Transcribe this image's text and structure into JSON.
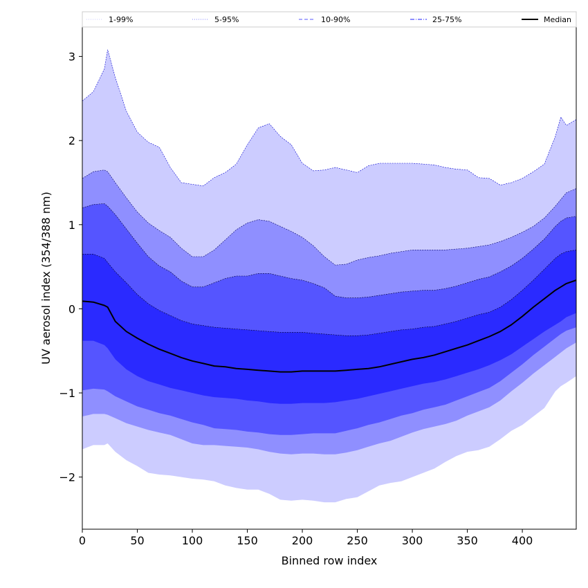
{
  "chart_data": {
    "type": "area",
    "xlabel": "Binned row index",
    "ylabel": "UV aerosol index (354/388 nm)",
    "xlim": [
      0,
      449
    ],
    "ylim": [
      -2.62,
      3.35
    ],
    "xticks": [
      0,
      50,
      100,
      150,
      200,
      250,
      300,
      350,
      400
    ],
    "yticks": [
      -2,
      -1,
      0,
      1,
      2,
      3
    ],
    "grid": false,
    "legend_placement": "top, spanning width",
    "x": [
      0,
      10,
      20,
      23,
      30,
      40,
      50,
      60,
      70,
      80,
      90,
      100,
      110,
      120,
      130,
      140,
      150,
      160,
      170,
      180,
      190,
      200,
      210,
      220,
      230,
      240,
      250,
      260,
      270,
      280,
      290,
      300,
      310,
      320,
      330,
      340,
      350,
      360,
      370,
      380,
      390,
      400,
      410,
      420,
      430,
      435,
      440,
      449
    ],
    "bands": [
      {
        "name": "1-99%",
        "fill": "#ccccff",
        "edge": "#0000cc",
        "upper": [
          2.47,
          2.58,
          2.85,
          3.08,
          2.75,
          2.35,
          2.1,
          1.98,
          1.92,
          1.68,
          1.5,
          1.48,
          1.46,
          1.56,
          1.62,
          1.72,
          1.95,
          2.15,
          2.2,
          2.05,
          1.95,
          1.73,
          1.64,
          1.65,
          1.68,
          1.65,
          1.62,
          1.7,
          1.73,
          1.73,
          1.73,
          1.73,
          1.72,
          1.71,
          1.68,
          1.66,
          1.65,
          1.56,
          1.55,
          1.47,
          1.5,
          1.55,
          1.63,
          1.72,
          2.05,
          2.28,
          2.18,
          2.25
        ],
        "lower": [
          -1.67,
          -1.62,
          -1.62,
          -1.6,
          -1.7,
          -1.8,
          -1.87,
          -1.95,
          -1.97,
          -1.98,
          -2.0,
          -2.02,
          -2.03,
          -2.05,
          -2.1,
          -2.13,
          -2.15,
          -2.15,
          -2.2,
          -2.27,
          -2.28,
          -2.27,
          -2.28,
          -2.3,
          -2.3,
          -2.26,
          -2.24,
          -2.17,
          -2.1,
          -2.07,
          -2.05,
          -2.0,
          -1.95,
          -1.9,
          -1.82,
          -1.75,
          -1.7,
          -1.68,
          -1.64,
          -1.55,
          -1.45,
          -1.38,
          -1.28,
          -1.18,
          -0.98,
          -0.92,
          -0.88,
          -0.8
        ]
      },
      {
        "name": "5-95%",
        "fill": "#8f8fff",
        "edge": "#000066",
        "upper": [
          1.55,
          1.63,
          1.65,
          1.63,
          1.5,
          1.32,
          1.15,
          1.02,
          0.93,
          0.85,
          0.72,
          0.62,
          0.62,
          0.7,
          0.82,
          0.94,
          1.02,
          1.06,
          1.04,
          0.98,
          0.92,
          0.85,
          0.75,
          0.62,
          0.52,
          0.53,
          0.58,
          0.61,
          0.63,
          0.66,
          0.68,
          0.7,
          0.7,
          0.7,
          0.7,
          0.71,
          0.72,
          0.74,
          0.76,
          0.8,
          0.85,
          0.91,
          0.98,
          1.08,
          1.22,
          1.3,
          1.38,
          1.43
        ],
        "lower": [
          -1.28,
          -1.25,
          -1.25,
          -1.26,
          -1.3,
          -1.36,
          -1.4,
          -1.44,
          -1.47,
          -1.5,
          -1.55,
          -1.6,
          -1.62,
          -1.62,
          -1.63,
          -1.64,
          -1.65,
          -1.67,
          -1.7,
          -1.72,
          -1.73,
          -1.72,
          -1.72,
          -1.73,
          -1.73,
          -1.71,
          -1.68,
          -1.64,
          -1.6,
          -1.57,
          -1.52,
          -1.47,
          -1.43,
          -1.4,
          -1.37,
          -1.33,
          -1.27,
          -1.22,
          -1.17,
          -1.09,
          -0.98,
          -0.88,
          -0.77,
          -0.67,
          -0.57,
          -0.52,
          -0.47,
          -0.4
        ]
      },
      {
        "name": "10-90%",
        "fill": "#5555ff",
        "edge": "#000033",
        "upper": [
          1.2,
          1.24,
          1.25,
          1.22,
          1.12,
          0.95,
          0.78,
          0.62,
          0.51,
          0.44,
          0.33,
          0.26,
          0.26,
          0.31,
          0.36,
          0.39,
          0.39,
          0.42,
          0.42,
          0.39,
          0.36,
          0.34,
          0.3,
          0.25,
          0.15,
          0.13,
          0.13,
          0.14,
          0.16,
          0.18,
          0.2,
          0.21,
          0.22,
          0.22,
          0.24,
          0.27,
          0.31,
          0.35,
          0.38,
          0.44,
          0.51,
          0.6,
          0.71,
          0.83,
          0.98,
          1.04,
          1.08,
          1.1
        ],
        "lower": [
          -0.97,
          -0.95,
          -0.96,
          -0.98,
          -1.04,
          -1.1,
          -1.16,
          -1.2,
          -1.24,
          -1.27,
          -1.31,
          -1.35,
          -1.38,
          -1.42,
          -1.43,
          -1.44,
          -1.46,
          -1.47,
          -1.49,
          -1.5,
          -1.5,
          -1.49,
          -1.48,
          -1.48,
          -1.48,
          -1.45,
          -1.42,
          -1.38,
          -1.35,
          -1.31,
          -1.27,
          -1.24,
          -1.2,
          -1.17,
          -1.14,
          -1.09,
          -1.04,
          -0.99,
          -0.94,
          -0.86,
          -0.76,
          -0.66,
          -0.55,
          -0.45,
          -0.35,
          -0.3,
          -0.26,
          -0.22
        ]
      },
      {
        "name": "25-75%",
        "fill": "#2a2aff",
        "edge": "#000022",
        "upper": [
          0.65,
          0.65,
          0.6,
          0.55,
          0.44,
          0.31,
          0.17,
          0.06,
          -0.02,
          -0.08,
          -0.14,
          -0.18,
          -0.2,
          -0.22,
          -0.23,
          -0.24,
          -0.25,
          -0.26,
          -0.27,
          -0.28,
          -0.28,
          -0.28,
          -0.29,
          -0.3,
          -0.31,
          -0.32,
          -0.32,
          -0.31,
          -0.29,
          -0.27,
          -0.25,
          -0.24,
          -0.22,
          -0.21,
          -0.18,
          -0.15,
          -0.11,
          -0.07,
          -0.04,
          0.02,
          0.11,
          0.22,
          0.34,
          0.47,
          0.6,
          0.65,
          0.68,
          0.7
        ],
        "lower": [
          -0.38,
          -0.38,
          -0.43,
          -0.47,
          -0.6,
          -0.72,
          -0.8,
          -0.86,
          -0.9,
          -0.94,
          -0.97,
          -1.0,
          -1.03,
          -1.05,
          -1.06,
          -1.07,
          -1.09,
          -1.1,
          -1.12,
          -1.13,
          -1.13,
          -1.12,
          -1.12,
          -1.12,
          -1.11,
          -1.09,
          -1.07,
          -1.04,
          -1.01,
          -0.98,
          -0.95,
          -0.92,
          -0.89,
          -0.87,
          -0.84,
          -0.8,
          -0.76,
          -0.72,
          -0.67,
          -0.61,
          -0.54,
          -0.45,
          -0.36,
          -0.27,
          -0.19,
          -0.15,
          -0.1,
          -0.05
        ]
      }
    ],
    "median": {
      "name": "Median",
      "color": "#000000",
      "values": [
        0.09,
        0.08,
        0.04,
        0.02,
        -0.15,
        -0.27,
        -0.35,
        -0.42,
        -0.48,
        -0.53,
        -0.58,
        -0.62,
        -0.65,
        -0.68,
        -0.69,
        -0.71,
        -0.72,
        -0.73,
        -0.74,
        -0.75,
        -0.75,
        -0.74,
        -0.74,
        -0.74,
        -0.74,
        -0.73,
        -0.72,
        -0.71,
        -0.69,
        -0.66,
        -0.63,
        -0.6,
        -0.58,
        -0.55,
        -0.51,
        -0.47,
        -0.43,
        -0.38,
        -0.33,
        -0.27,
        -0.19,
        -0.09,
        0.02,
        0.12,
        0.22,
        0.26,
        0.3,
        0.34
      ]
    },
    "legend": [
      {
        "label": "1-99%",
        "color": "#d5d5ff",
        "style": "dotted"
      },
      {
        "label": "5-95%",
        "color": "#9b9bff",
        "style": "dotted"
      },
      {
        "label": "10-90%",
        "color": "#7777ff",
        "style": "dashed"
      },
      {
        "label": "25-75%",
        "color": "#4a4aff",
        "style": "dashdot"
      },
      {
        "label": "Median",
        "color": "#000000",
        "style": "solid"
      }
    ]
  }
}
